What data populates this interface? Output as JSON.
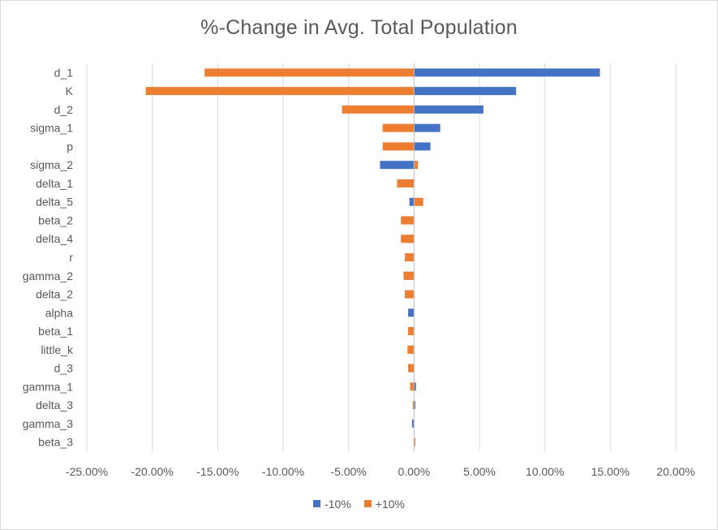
{
  "chart_data": {
    "type": "bar",
    "orientation": "horizontal",
    "title": "%-Change in Avg. Total Population",
    "categories": [
      "d_1",
      "K",
      "d_2",
      "sigma_1",
      "p",
      "sigma_2",
      "delta_1",
      "delta_5",
      "beta_2",
      "delta_4",
      "r",
      "gamma_2",
      "delta_2",
      "alpha",
      "beta_1",
      "little_k",
      "d_3",
      "gamma_1",
      "delta_3",
      "gamma_3",
      "beta_3"
    ],
    "series": [
      {
        "name": "-10%",
        "color": "#4472c4",
        "values": [
          14.2,
          7.8,
          5.3,
          2.0,
          1.25,
          -2.6,
          -0.25,
          -0.35,
          -0.55,
          -0.5,
          0.0,
          -0.65,
          -0.45,
          -0.45,
          -0.1,
          -0.3,
          -0.3,
          0.15,
          0.1,
          -0.15,
          0.1
        ]
      },
      {
        "name": "+10%",
        "color": "#ed7d31",
        "values": [
          -16.0,
          -20.5,
          -5.5,
          -2.4,
          -2.4,
          0.3,
          -1.3,
          0.7,
          -1.0,
          -1.0,
          -0.7,
          -0.8,
          -0.7,
          0.0,
          -0.45,
          -0.5,
          -0.45,
          -0.3,
          -0.1,
          0.0,
          0.1
        ]
      }
    ],
    "xlim": [
      -25,
      20
    ],
    "xticks": [
      -25,
      -20,
      -15,
      -10,
      -5,
      0,
      5,
      10,
      15,
      20
    ],
    "xtick_labels": [
      "-25.00%",
      "-20.00%",
      "-15.00%",
      "-10.00%",
      "-5.00%",
      "0.00%",
      "5.00%",
      "10.00%",
      "15.00%",
      "20.00%"
    ],
    "grid": "vertical",
    "legend_position": "bottom",
    "xlabel": "",
    "ylabel": ""
  }
}
